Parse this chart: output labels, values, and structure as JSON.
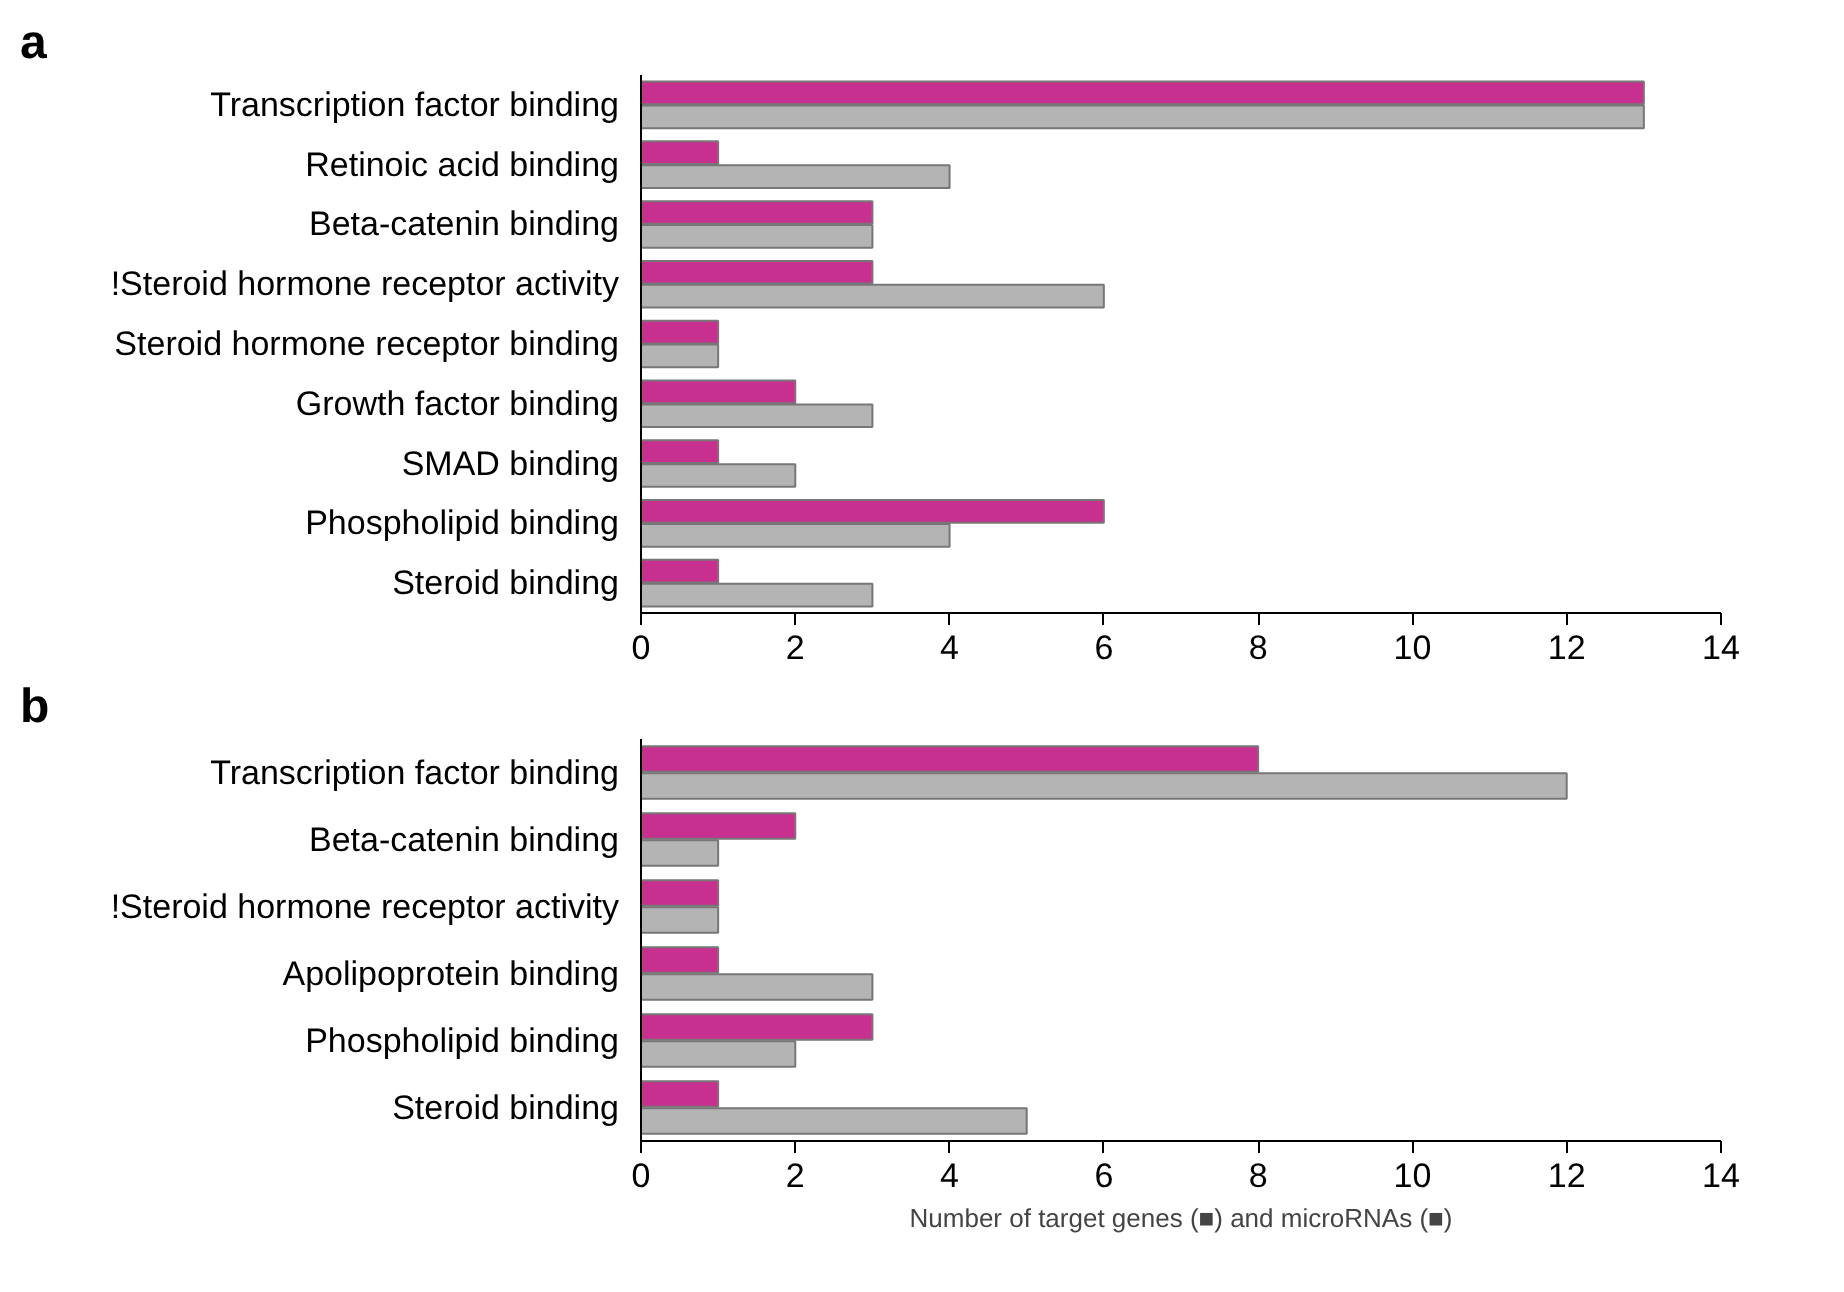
{
  "chart_data": [
    {
      "type": "bar",
      "title": "a",
      "orientation": "horizontal",
      "grid": false,
      "categories": [
        "Transcription factor binding",
        "Retinoic acid binding",
        "Beta-catenin binding",
        "!Steroid hormone receptor activity",
        "Steroid hormone receptor binding",
        "Growth factor binding",
        "SMAD binding",
        "Phospholipid binding",
        "Steroid binding"
      ],
      "series": [
        {
          "color": "#c8308f",
          "values": [
            13,
            1,
            3,
            3,
            1,
            2,
            1,
            6,
            1
          ]
        },
        {
          "color": "#b4b4b4",
          "values": [
            13,
            4,
            3,
            6,
            1,
            3,
            2,
            4,
            3
          ]
        }
      ],
      "xlim": [
        0,
        14
      ],
      "xticks": [
        0,
        2,
        4,
        6,
        8,
        10,
        12,
        14
      ]
    },
    {
      "type": "bar",
      "title": "b",
      "orientation": "horizontal",
      "grid": false,
      "categories": [
        "Transcription factor binding",
        "Beta-catenin binding",
        "!Steroid hormone receptor activity",
        "Apolipoprotein binding",
        "Phospholipid binding",
        "Steroid binding"
      ],
      "series": [
        {
          "color": "#c8308f",
          "values": [
            8,
            2,
            1,
            1,
            3,
            1
          ]
        },
        {
          "color": "#b4b4b4",
          "values": [
            12,
            1,
            1,
            3,
            2,
            5
          ]
        }
      ],
      "xlim": [
        0,
        14
      ],
      "xticks": [
        0,
        2,
        4,
        6,
        8,
        10,
        12,
        14
      ],
      "xlabel": "Number of target genes (■) and microRNAs (■)"
    }
  ]
}
